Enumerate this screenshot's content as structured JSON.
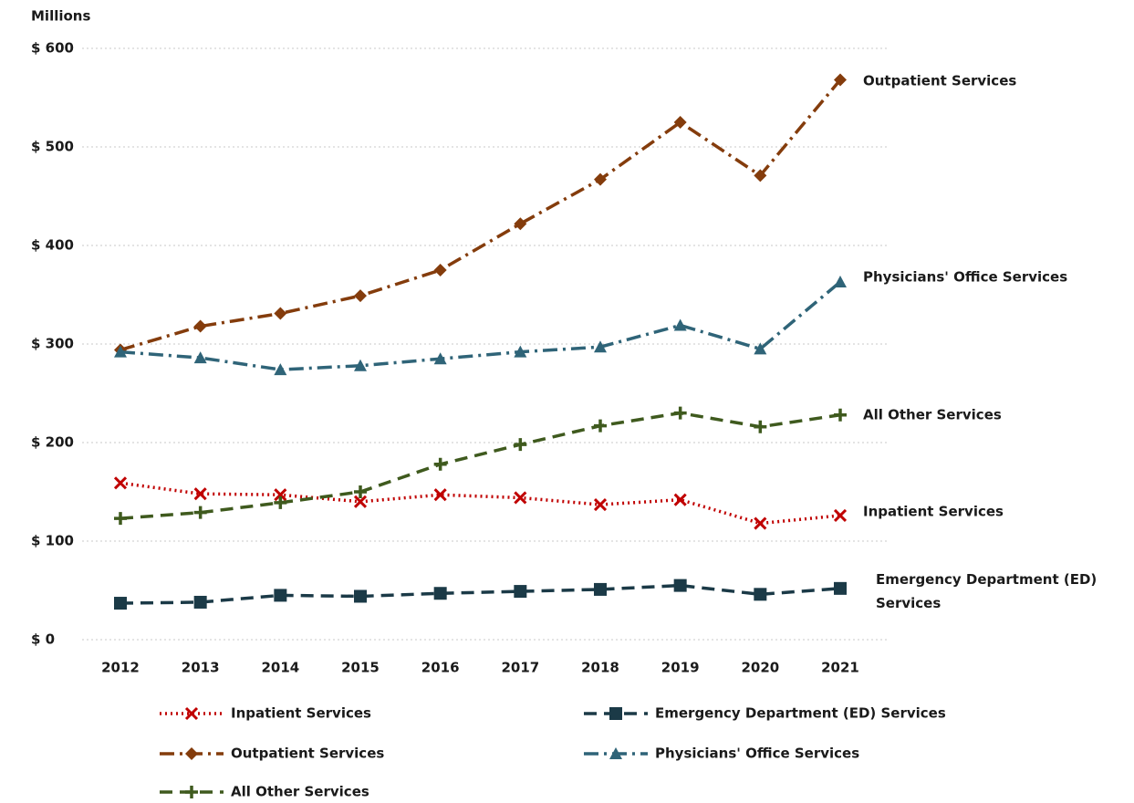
{
  "chart_data": {
    "type": "line",
    "y_axis_label": "Millions",
    "categories": [
      "2012",
      "2013",
      "2014",
      "2015",
      "2016",
      "2017",
      "2018",
      "2019",
      "2020",
      "2021"
    ],
    "ylim": [
      0,
      600
    ],
    "yticks": [
      {
        "value": 0,
        "label": "$ 0"
      },
      {
        "value": 100,
        "label": "$ 100"
      },
      {
        "value": 200,
        "label": "$ 200"
      },
      {
        "value": 300,
        "label": "$ 300"
      },
      {
        "value": 400,
        "label": "$ 400"
      },
      {
        "value": 500,
        "label": "$ 500"
      },
      {
        "value": 600,
        "label": "$ 600"
      }
    ],
    "grid": true,
    "legend": "bottom",
    "series": [
      {
        "name": "Inpatient Services",
        "color": "#c00000",
        "dash": "dotted",
        "marker": "x",
        "values": [
          159,
          148,
          147,
          140,
          147,
          144,
          137,
          142,
          118,
          126
        ]
      },
      {
        "name": "Emergency Department (ED) Services",
        "color": "#1b3a47",
        "dash": "dashed",
        "marker": "square",
        "values": [
          37,
          38,
          45,
          44,
          47,
          49,
          51,
          55,
          46,
          52
        ]
      },
      {
        "name": "Outpatient Services",
        "color": "#843c0c",
        "dash": "dash-dot",
        "marker": "diamond",
        "values": [
          294,
          318,
          331,
          349,
          375,
          422,
          467,
          525,
          471,
          568
        ]
      },
      {
        "name": "Physicians' Office Services",
        "color": "#2f6478",
        "dash": "dash-dot",
        "marker": "triangle",
        "values": [
          292,
          286,
          274,
          278,
          285,
          292,
          297,
          319,
          295,
          363
        ]
      },
      {
        "name": "All Other Services",
        "color": "#3f5a1e",
        "dash": "dashed",
        "marker": "plus",
        "values": [
          123,
          129,
          139,
          150,
          178,
          198,
          217,
          230,
          216,
          228
        ]
      }
    ]
  }
}
